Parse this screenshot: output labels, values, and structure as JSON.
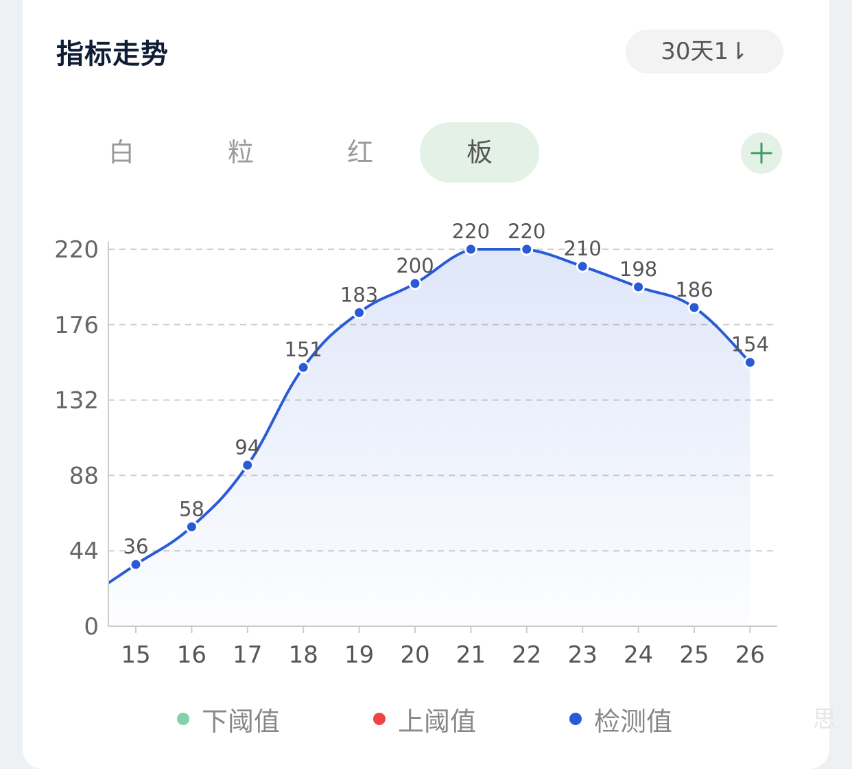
{
  "header": {
    "title": "指标走势",
    "range_label": "30天1⇂"
  },
  "tabs": [
    {
      "label": "白",
      "active": false
    },
    {
      "label": "粒",
      "active": false
    },
    {
      "label": "红",
      "active": false
    },
    {
      "label": "板",
      "active": true
    }
  ],
  "add_button": {
    "icon": "plus-icon"
  },
  "colors": {
    "accent": "#2a5bd7",
    "lower_threshold": "#7fd3a6",
    "upper_threshold": "#f04444",
    "tab_active_bg": "#e3f1e6",
    "plus_color": "#3d9a62"
  },
  "legend": [
    {
      "label": "下阈值",
      "color": "#7fd3a6"
    },
    {
      "label": "上阈值",
      "color": "#f04444"
    },
    {
      "label": "检测值",
      "color": "#2a5bd7"
    }
  ],
  "watermark": "思",
  "chart_data": {
    "type": "area",
    "categories": [
      "15",
      "16",
      "17",
      "18",
      "19",
      "20",
      "21",
      "22",
      "23",
      "24",
      "25",
      "26"
    ],
    "series": [
      {
        "name": "检测值",
        "values": [
          36,
          58,
          94,
          151,
          183,
          200,
          220,
          220,
          210,
          198,
          186,
          154
        ]
      }
    ],
    "ylim": [
      0,
      220
    ],
    "yticks": [
      0,
      44,
      88,
      132,
      176,
      220
    ],
    "grid": true,
    "legend_position": "bottom"
  }
}
